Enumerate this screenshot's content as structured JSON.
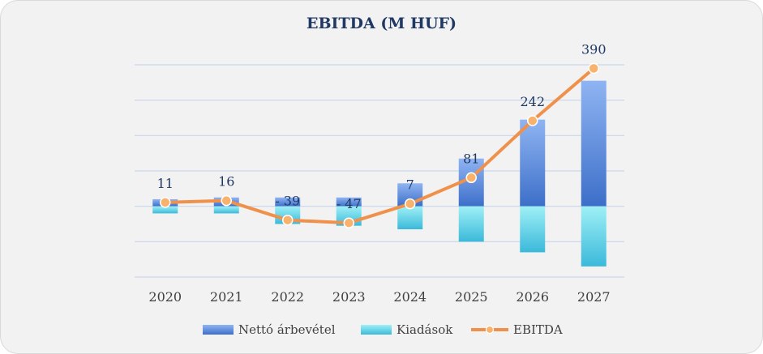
{
  "chart_data": {
    "type": "bar",
    "title": "EBITDA (M HUF)",
    "categories": [
      "2020",
      "2021",
      "2022",
      "2023",
      "2024",
      "2025",
      "2026",
      "2027"
    ],
    "series": [
      {
        "name": "Nettó árbevétel",
        "type": "bar",
        "values": [
          20,
          25,
          25,
          25,
          65,
          135,
          245,
          355
        ],
        "color": "#4472c4"
      },
      {
        "name": "Kiadások",
        "type": "bar",
        "values": [
          -20,
          -20,
          -50,
          -55,
          -65,
          -100,
          -130,
          -170
        ],
        "color": "#2fb8d8"
      },
      {
        "name": "EBITDA",
        "type": "line",
        "values": [
          11,
          16,
          -39,
          -47,
          7,
          81,
          242,
          390
        ],
        "color": "#f0914b"
      }
    ],
    "data_labels": [
      "11",
      "16",
      "- 39",
      "- 47",
      "7",
      "81",
      "242",
      "390"
    ],
    "ylim": [
      -200,
      400
    ],
    "grid": true,
    "legend_position": "bottom"
  },
  "colors": {
    "title": "#1f3864",
    "grid": "#c9d7ea",
    "line": "#f0914b",
    "marker_fill": "#f8b26b",
    "bar_top": "#8fb4f2",
    "bar_bottom": "#3d6fc9",
    "exp_top": "#3bb9da",
    "exp_bottom": "#9ff0f6"
  }
}
